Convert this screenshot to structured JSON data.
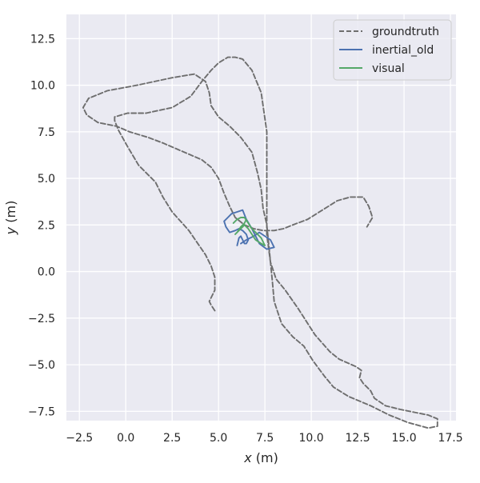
{
  "chart_data": {
    "type": "line",
    "title": "",
    "xlabel": "x (m)",
    "ylabel": "y (m)",
    "xlim": [
      -3.2,
      17.8
    ],
    "ylim": [
      -8.0,
      13.8
    ],
    "x_ticks": [
      "−2.5",
      "0.0",
      "2.5",
      "5.0",
      "7.5",
      "10.0",
      "12.5",
      "15.0",
      "17.5"
    ],
    "x_tick_values": [
      -2.5,
      0,
      2.5,
      5,
      7.5,
      10,
      12.5,
      15,
      17.5
    ],
    "y_ticks": [
      "−7.5",
      "−5.0",
      "−2.5",
      "0.0",
      "2.5",
      "5.0",
      "7.5",
      "10.0",
      "12.5"
    ],
    "y_tick_values": [
      -7.5,
      -5,
      -2.5,
      0,
      2.5,
      5,
      7.5,
      10,
      12.5
    ],
    "grid": true,
    "legend_position": "top-right",
    "background_color": "#EAEAF2",
    "grid_color": "#FFFFFF",
    "series": [
      {
        "name": "groundtruth",
        "color": "#6E6E6E",
        "dash": true,
        "x": [
          4.8,
          4.6,
          4.5,
          4.8,
          4.8,
          4.6,
          4.3,
          3.4,
          2.5,
          2.0,
          1.6,
          1.2,
          0.7,
          0.1,
          -0.4,
          -0.6,
          -0.6,
          0.1,
          1.1,
          2.5,
          3.5,
          4.1,
          4.6,
          5.0,
          5.5,
          5.9,
          6.3,
          6.8,
          7.3,
          7.6,
          7.6,
          7.6,
          7.6,
          7.8,
          8.1,
          8.6,
          9.3,
          10.2,
          11.0,
          11.5,
          12.4,
          12.7,
          12.6,
          12.8,
          13.2,
          13.4,
          14.0,
          14.8,
          15.8,
          16.3,
          16.8,
          16.8,
          16.3,
          15.2,
          14.2,
          13.2,
          12.0,
          11.2,
          10.7,
          10.1,
          9.6,
          9.0,
          8.4,
          8.0,
          7.9,
          7.8,
          7.7,
          7.6,
          7.4,
          7.3,
          7.1,
          6.8,
          6.2,
          5.6,
          5.0,
          4.6,
          4.5,
          4.3,
          3.7,
          2.5,
          0.6,
          -1.0,
          -2.0,
          -2.3,
          -2.1,
          -1.5,
          -0.5,
          0.2,
          1.2,
          2.0,
          2.7,
          3.4,
          4.1,
          4.6,
          5.0,
          5.3,
          5.6,
          5.9,
          6.4,
          6.9,
          7.4,
          8.0,
          8.5,
          9.0,
          9.8,
          10.6,
          11.4,
          12.1,
          12.8,
          13.1,
          13.3,
          13.0
        ],
        "y": [
          -2.1,
          -1.8,
          -1.6,
          -1.0,
          -0.3,
          0.3,
          0.9,
          2.2,
          3.2,
          4.0,
          4.8,
          5.2,
          5.7,
          6.7,
          7.6,
          8.1,
          8.3,
          8.5,
          8.5,
          8.8,
          9.4,
          10.2,
          10.8,
          11.2,
          11.5,
          11.5,
          11.4,
          10.8,
          9.6,
          7.5,
          5.5,
          3.5,
          2.0,
          0.5,
          -0.4,
          -1.0,
          -2.0,
          -3.4,
          -4.3,
          -4.7,
          -5.1,
          -5.3,
          -5.7,
          -6.0,
          -6.4,
          -6.8,
          -7.2,
          -7.4,
          -7.6,
          -7.7,
          -7.9,
          -8.3,
          -8.4,
          -8.1,
          -7.7,
          -7.2,
          -6.7,
          -6.2,
          -5.6,
          -4.8,
          -4.0,
          -3.5,
          -2.8,
          -1.6,
          -0.5,
          0.5,
          1.5,
          2.5,
          3.4,
          4.4,
          5.3,
          6.4,
          7.2,
          7.8,
          8.3,
          8.9,
          9.6,
          10.2,
          10.6,
          10.4,
          10.0,
          9.7,
          9.3,
          8.8,
          8.4,
          8.0,
          7.8,
          7.5,
          7.2,
          6.9,
          6.6,
          6.3,
          6.0,
          5.6,
          5.0,
          4.2,
          3.5,
          2.9,
          2.5,
          2.3,
          2.2,
          2.2,
          2.3,
          2.5,
          2.8,
          3.3,
          3.8,
          4.0,
          4.0,
          3.5,
          2.9,
          2.4
        ]
      },
      {
        "name": "inertial_old",
        "color": "#4C72B0",
        "dash": false,
        "x": [
          6.2,
          6.5,
          6.9,
          7.2,
          7.8,
          8.0,
          7.6,
          7.2,
          7.0,
          6.8,
          6.5,
          6.3,
          6.0,
          5.7,
          5.5,
          5.3,
          5.4,
          5.6,
          5.9,
          6.1,
          6.3,
          6.5,
          6.6,
          6.5,
          6.4,
          6.3,
          6.2,
          6.1,
          6.0
        ],
        "y": [
          1.5,
          1.7,
          1.9,
          2.1,
          1.7,
          1.3,
          1.2,
          1.5,
          1.9,
          2.3,
          2.8,
          3.3,
          3.2,
          3.1,
          2.9,
          2.7,
          2.4,
          2.1,
          2.2,
          2.3,
          2.2,
          2.0,
          1.7,
          1.5,
          1.5,
          1.7,
          1.9,
          1.8,
          1.4
        ]
      },
      {
        "name": "visual",
        "color": "#55A868",
        "dash": false,
        "x": [
          5.8,
          6.0,
          6.2,
          6.4,
          6.6,
          6.8,
          7.0,
          7.3,
          7.5,
          7.3,
          7.0,
          6.8,
          6.6,
          6.4,
          6.2,
          6.0,
          5.9,
          6.0,
          6.2,
          6.4,
          6.5
        ],
        "y": [
          2.6,
          2.8,
          2.9,
          2.9,
          2.6,
          2.3,
          2.1,
          1.8,
          1.4,
          1.5,
          1.7,
          2.0,
          2.3,
          2.5,
          2.3,
          2.1,
          2.0,
          2.1,
          2.4,
          2.6,
          2.8
        ]
      }
    ]
  }
}
